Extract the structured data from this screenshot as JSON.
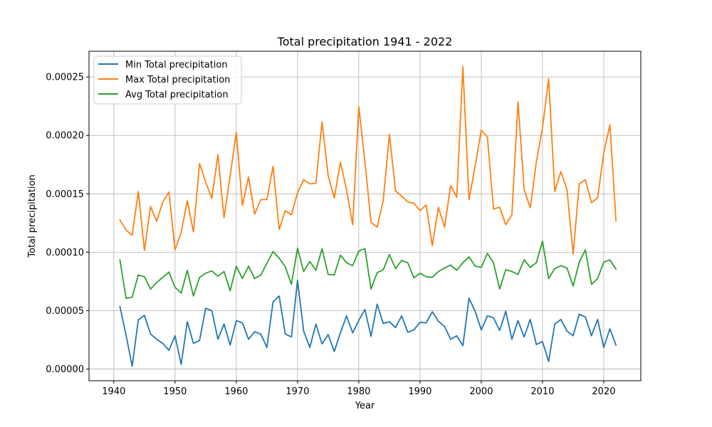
{
  "chart_data": {
    "type": "line",
    "title": "Total precipitation 1941 - 2022",
    "xlabel": "Year",
    "ylabel": "Total precipitation",
    "xlim": [
      1935.95,
      2026.05
    ],
    "ylim": [
      -1e-05,
      0.000272
    ],
    "xticks": [
      1940,
      1950,
      1960,
      1970,
      1980,
      1990,
      2000,
      2010,
      2020
    ],
    "yticks": [
      0,
      5e-05,
      0.0001,
      0.00015,
      0.0002,
      0.00025
    ],
    "ytick_labels": [
      "0.00000",
      "0.00005",
      "0.00010",
      "0.00015",
      "0.00020",
      "0.00025"
    ],
    "grid": true,
    "legend_position": "top-left",
    "x": [
      1941,
      1942,
      1943,
      1944,
      1945,
      1946,
      1947,
      1948,
      1949,
      1950,
      1951,
      1952,
      1953,
      1954,
      1955,
      1956,
      1957,
      1958,
      1959,
      1960,
      1961,
      1962,
      1963,
      1964,
      1965,
      1966,
      1967,
      1968,
      1969,
      1970,
      1971,
      1972,
      1973,
      1974,
      1975,
      1976,
      1977,
      1978,
      1979,
      1980,
      1981,
      1982,
      1983,
      1984,
      1985,
      1986,
      1987,
      1988,
      1989,
      1990,
      1991,
      1992,
      1993,
      1994,
      1995,
      1996,
      1997,
      1998,
      1999,
      2000,
      2001,
      2002,
      2003,
      2004,
      2005,
      2006,
      2007,
      2008,
      2009,
      2010,
      2011,
      2012,
      2013,
      2014,
      2015,
      2016,
      2017,
      2018,
      2019,
      2020,
      2021,
      2022
    ],
    "series": [
      {
        "name": "Min Total precipitation",
        "color": "#1f77b4",
        "values": [
          5.35e-05,
          2.9e-05,
          2.5e-06,
          4.2e-05,
          4.6e-05,
          3e-05,
          2.55e-05,
          2.2e-05,
          1.6e-05,
          2.85e-05,
          4e-06,
          4.05e-05,
          2.2e-05,
          2.45e-05,
          5.2e-05,
          5e-05,
          2.55e-05,
          3.85e-05,
          2.05e-05,
          4.15e-05,
          3.95e-05,
          2.55e-05,
          3.2e-05,
          3e-05,
          1.85e-05,
          5.75e-05,
          6.25e-05,
          3e-05,
          2.75e-05,
          7.6e-05,
          3.25e-05,
          1.85e-05,
          3.85e-05,
          2.15e-05,
          2.95e-05,
          1.5e-05,
          3.1e-05,
          4.55e-05,
          3.1e-05,
          4.15e-05,
          5.1e-05,
          2.8e-05,
          5.55e-05,
          3.9e-05,
          4.05e-05,
          3.55e-05,
          4.55e-05,
          3.15e-05,
          3.35e-05,
          4e-05,
          3.95e-05,
          4.9e-05,
          4.1e-05,
          3.65e-05,
          2.55e-05,
          2.85e-05,
          2e-05,
          6.05e-05,
          4.95e-05,
          3.35e-05,
          4.55e-05,
          4.4e-05,
          3.3e-05,
          4.95e-05,
          2.55e-05,
          4.15e-05,
          2.75e-05,
          4.25e-05,
          2.1e-05,
          2.35e-05,
          6.5e-06,
          3.85e-05,
          4.25e-05,
          3.25e-05,
          2.85e-05,
          4.7e-05,
          4.45e-05,
          2.85e-05,
          4.25e-05,
          1.85e-05,
          3.45e-05,
          2.05e-05
        ]
      },
      {
        "name": "Max Total precipitation",
        "color": "#ff7f0e",
        "values": [
          0.0001275,
          0.000119,
          0.0001145,
          0.000152,
          0.0001015,
          0.000139,
          0.0001265,
          0.000143,
          0.0001515,
          0.000102,
          0.000117,
          0.000144,
          0.0001175,
          0.000176,
          0.00016,
          0.000146,
          0.0001835,
          0.0001295,
          0.0001655,
          0.0002025,
          0.00014,
          0.0001645,
          0.0001325,
          0.000145,
          0.000145,
          0.0001735,
          0.0001195,
          0.0001355,
          0.000132,
          0.000151,
          0.000162,
          0.0001585,
          0.000159,
          0.0002115,
          0.0001655,
          0.0001465,
          0.000177,
          0.0001535,
          0.0001235,
          0.0002245,
          0.000178,
          0.0001255,
          0.0001215,
          0.0001445,
          0.000201,
          0.0001525,
          0.000148,
          0.000143,
          0.000142,
          0.0001355,
          0.0001405,
          0.0001055,
          0.0001385,
          0.0001215,
          0.000157,
          0.000147,
          0.000259,
          0.000145,
          0.0001735,
          0.0002045,
          0.0001985,
          0.000137,
          0.0001385,
          0.0001235,
          0.000132,
          0.0002285,
          0.0001535,
          0.000138,
          0.0001775,
          0.0002065,
          0.0002485,
          0.000152,
          0.000169,
          0.0001535,
          9.85e-05,
          0.0001585,
          0.000162,
          0.0001425,
          0.0001465,
          0.000185,
          0.000209,
          0.000127
        ]
      },
      {
        "name": "Avg Total precipitation",
        "color": "#2ca02c",
        "values": [
          9.35e-05,
          6.05e-05,
          6.15e-05,
          8.05e-05,
          7.9e-05,
          6.85e-05,
          7.4e-05,
          7.85e-05,
          8.3e-05,
          7e-05,
          6.5e-05,
          8.45e-05,
          6.25e-05,
          7.85e-05,
          8.2e-05,
          8.4e-05,
          7.95e-05,
          8.35e-05,
          6.7e-05,
          8.8e-05,
          7.75e-05,
          8.8e-05,
          7.75e-05,
          8.05e-05,
          9.05e-05,
          0.0001005,
          9.5e-05,
          8.75e-05,
          7.25e-05,
          0.0001035,
          8.35e-05,
          9.2e-05,
          8.45e-05,
          0.000103,
          8.1e-05,
          8.05e-05,
          9.75e-05,
          9.1e-05,
          8.85e-05,
          0.000101,
          0.000103,
          6.85e-05,
          8.25e-05,
          8.5e-05,
          9.8e-05,
          8.6e-05,
          9.3e-05,
          9.1e-05,
          7.8e-05,
          8.2e-05,
          7.9e-05,
          7.85e-05,
          8.35e-05,
          8.65e-05,
          8.9e-05,
          8.45e-05,
          9.1e-05,
          9.6e-05,
          8.8e-05,
          8.7e-05,
          9.9e-05,
          9.1e-05,
          6.85e-05,
          8.5e-05,
          8.35e-05,
          8.1e-05,
          9.35e-05,
          8.7e-05,
          9.1e-05,
          0.0001095,
          7.75e-05,
          8.6e-05,
          8.85e-05,
          8.65e-05,
          7.1e-05,
          9.15e-05,
          0.000102,
          7.25e-05,
          7.75e-05,
          9.15e-05,
          9.35e-05,
          8.55e-05
        ]
      }
    ]
  }
}
